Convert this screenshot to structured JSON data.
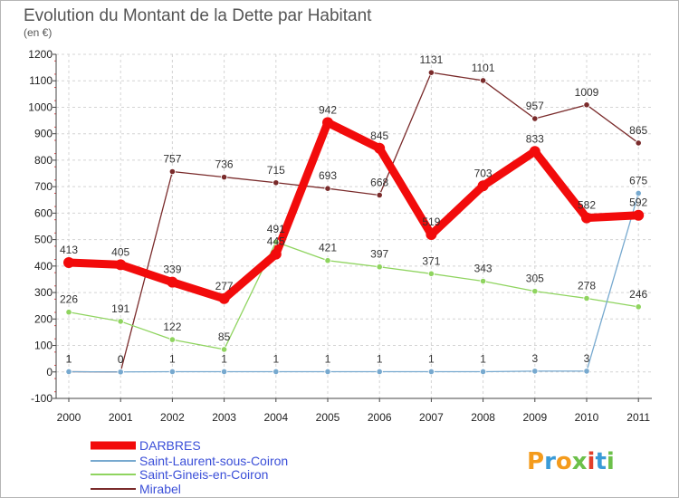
{
  "chart_data": {
    "type": "line",
    "title": "Evolution du Montant de la Dette par Habitant",
    "subtitle": "(en €)",
    "xlabel": "",
    "ylabel": "",
    "x": [
      "2000",
      "2001",
      "2002",
      "2003",
      "2004",
      "2005",
      "2006",
      "2007",
      "2008",
      "2009",
      "2010",
      "2011"
    ],
    "ylim": [
      -100,
      1200
    ],
    "yticks": [
      "-100",
      "0",
      "100",
      "200",
      "300",
      "400",
      "500",
      "600",
      "700",
      "800",
      "900",
      "1000",
      "1100",
      "1200"
    ],
    "grid": true,
    "legend_position": "bottom-left",
    "series": [
      {
        "name": "Mirabel",
        "color": "#7a2b2b",
        "values": [
          1,
          0,
          757,
          736,
          715,
          693,
          668,
          1131,
          1101,
          957,
          1009,
          865
        ],
        "labels": [
          "1",
          "0",
          "757",
          "736",
          "715",
          "693",
          "668",
          "1131",
          "1101",
          "957",
          "1009",
          "865"
        ]
      },
      {
        "name": "Saint-Gineis-en-Coiron",
        "color": "#8fd45f",
        "values": [
          226,
          191,
          122,
          85,
          491,
          421,
          397,
          371,
          343,
          305,
          278,
          246
        ],
        "labels": [
          "226",
          "191",
          "122",
          "85",
          "491",
          "421",
          "397",
          "371",
          "343",
          "305",
          "278",
          "246"
        ]
      },
      {
        "name": "Saint-Laurent-sous-Coiron",
        "color": "#77a9cf",
        "values": [
          1,
          0,
          1,
          1,
          1,
          1,
          1,
          1,
          1,
          3,
          3,
          675
        ],
        "labels": [
          "1",
          "0",
          "1",
          "1",
          "1",
          "1",
          "1",
          "1",
          "1",
          "3",
          "3",
          "675"
        ]
      },
      {
        "name": "DARBRES",
        "color": "#f20b0b",
        "values": [
          413,
          405,
          339,
          277,
          445,
          942,
          845,
          519,
          703,
          833,
          582,
          592
        ],
        "labels": [
          "413",
          "405",
          "339",
          "277",
          "445",
          "942",
          "845",
          "519",
          "703",
          "833",
          "582",
          "592"
        ]
      }
    ],
    "legend": [
      "DARBRES",
      "Saint-Laurent-sous-Coiron",
      "Saint-Gineis-en-Coiron",
      "Mirabel"
    ]
  },
  "logo": {
    "text": "Proxiti",
    "colors": [
      "#f49b1c",
      "#3a9bd8",
      "#f49b1c",
      "#6cc04a",
      "#e23f2a",
      "#3a9bd8",
      "#6cc04a"
    ]
  }
}
